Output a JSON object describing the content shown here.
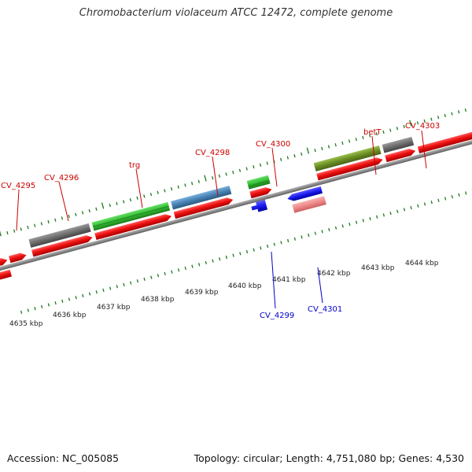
{
  "title": "Chromobacterium violaceum ATCC 12472, complete genome",
  "footer": {
    "accession": "Accession: NC_005085",
    "stats": "Topology: circular; Length: 4,751,080 bp; Genes: 4,530"
  },
  "kbp_labels": [
    "4635 kbp",
    "4636 kbp",
    "4637 kbp",
    "4638 kbp",
    "4639 kbp",
    "4640 kbp",
    "4641 kbp",
    "4642 kbp",
    "4643 kbp",
    "4644 kbp"
  ],
  "gene_labels": {
    "plus": [
      "CV_4295",
      "CV_4296",
      "trg",
      "CV_4298",
      "CV_4300",
      "betT",
      "CV_4303"
    ],
    "minus": [
      "CV_4299",
      "CV_4301"
    ]
  },
  "colors": {
    "backbone": "#8a8a8a",
    "cds": "#ee1111",
    "gray_feature": "#6e6e6e",
    "green_feature": "#33bb33",
    "steelblue_feature": "#4682b4",
    "olive_feature": "#6b8e23",
    "blue_feature": "#1a1aee",
    "pink_feature": "#ee8888",
    "tick": "#1a7a1a",
    "label_plus": "#cc0000",
    "label_minus": "#0000cc"
  },
  "icons": {
    "forward": "forward-arrow-feature",
    "reverse": "reverse-arrow-feature"
  }
}
